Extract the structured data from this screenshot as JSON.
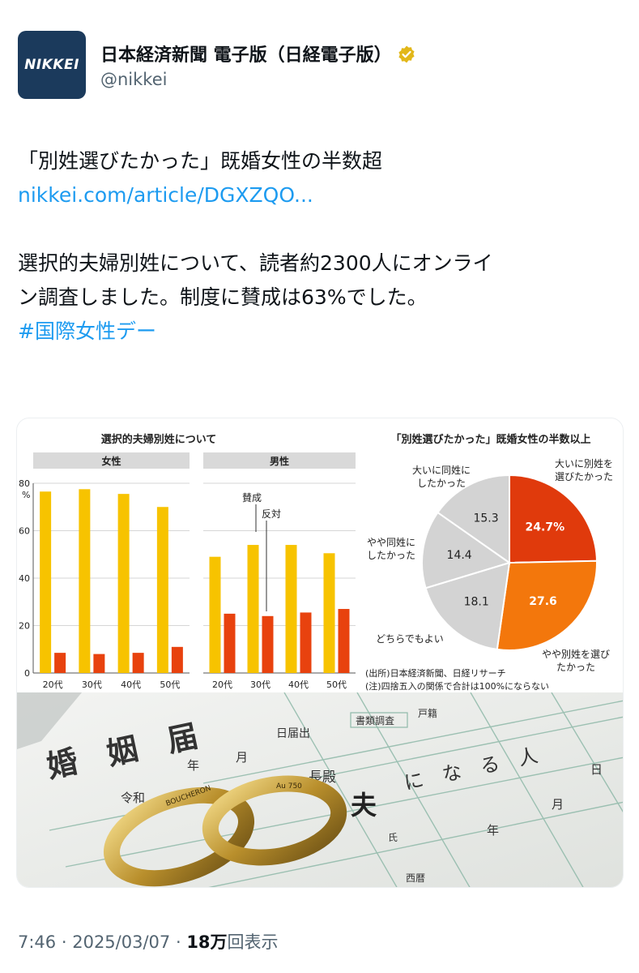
{
  "account": {
    "avatar_text": "NIKKEI",
    "display_name": "日本経済新聞 電子版（日経電子版）",
    "handle": "@nikkei"
  },
  "tweet": {
    "headline": "「別姓選びたかった」既婚女性の半数超",
    "link": "nikkei.com/article/DGXZQO...",
    "body_line1": "選択的夫婦別姓について、読者約2300人にオンライ",
    "body_line2": "ン調査しました。制度に賛成は63%でした。",
    "hashtag": "#国際女性デー"
  },
  "meta": {
    "time": "7:46",
    "date": "2025/03/07",
    "views": "18",
    "views_unit": "万",
    "views_label": "回表示"
  },
  "colors": {
    "yes": "#f7c300",
    "no": "#e8420e",
    "pie_strong_separate": "#e03a0c",
    "pie_somewhat_separate": "#f3770c",
    "pie_neutral": "#d3d3d3",
    "link": "#1d9bf0"
  },
  "chart_data": [
    {
      "type": "bar",
      "title": "選択的夫婦別姓について",
      "panels": [
        "女性",
        "男性"
      ],
      "categories": [
        "20代",
        "30代",
        "40代",
        "50代"
      ],
      "y_unit": "%",
      "yticks": [
        0,
        20,
        40,
        60,
        80
      ],
      "ylim": [
        0,
        80
      ],
      "annotation_yes": "賛成",
      "annotation_no": "反対",
      "female": {
        "yes": [
          76.5,
          77.5,
          75.5,
          70
        ],
        "no": [
          8.5,
          8,
          8.5,
          11
        ]
      },
      "male": {
        "yes": [
          49,
          54,
          54,
          50.5
        ],
        "no": [
          25,
          24,
          25.5,
          27
        ]
      }
    },
    {
      "type": "pie",
      "title": "「別姓選びたかった」既婚女性の半数以上",
      "slices": [
        {
          "label_l1": "大いに別姓を",
          "label_l2": "選びたかった",
          "value": 24.7,
          "value_label": "24.7%"
        },
        {
          "label_l1": "やや別姓を選び",
          "label_l2": "たかった",
          "value": 27.6,
          "value_label": "27.6"
        },
        {
          "label_l1": "どちらでもよい",
          "label_l2": "",
          "value": 18.1,
          "value_label": "18.1"
        },
        {
          "label_l1": "やや同姓に",
          "label_l2": "したかった",
          "value": 14.4,
          "value_label": "14.4"
        },
        {
          "label_l1": "大いに同姓に",
          "label_l2": "したかった",
          "value": 15.3,
          "value_label": "15.3"
        }
      ],
      "source_line": "(出所)日本経済新聞、日経リサーチ",
      "note_line": "(注)四捨五入の関係で合計は100%にならない"
    }
  ],
  "photo": {
    "form_title": "婚　姻　届",
    "form_date_label": "日届出",
    "form_reiwa": "令和",
    "form_year": "年",
    "form_month": "月",
    "form_day": "日",
    "form_chief": "長殿",
    "form_husband": "夫",
    "form_become": "に　な　る　人",
    "form_surname": "氏",
    "form_seireki": "西暦",
    "form_receipt": "書類調査",
    "form_koseki": "戸籍",
    "ring_engraving_1": "BOUCHERON",
    "ring_engraving_2": "Au 750"
  }
}
